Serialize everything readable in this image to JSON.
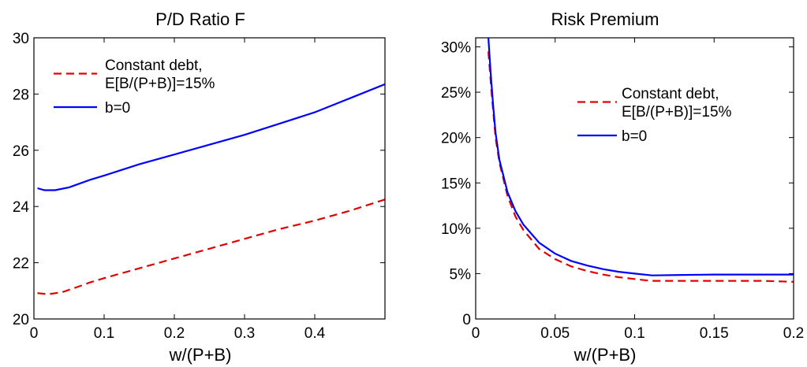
{
  "chart_data": [
    {
      "type": "line",
      "title": "P/D Ratio F",
      "xlabel": "w/(P+B)",
      "ylabel": "",
      "xlim": [
        0,
        0.5
      ],
      "ylim": [
        20,
        30
      ],
      "xticks": [
        0,
        0.1,
        0.2,
        0.3,
        0.4
      ],
      "xtick_labels": [
        "0",
        "0.1",
        "0.2",
        "0.3",
        "0.4"
      ],
      "yticks": [
        20,
        22,
        24,
        26,
        28,
        30
      ],
      "ytick_labels": [
        "20",
        "22",
        "24",
        "26",
        "28",
        "30"
      ],
      "legend_position": "top-left",
      "series": [
        {
          "name_lines": [
            "Constant debt,",
            "E[B/(P+B)]=15%"
          ],
          "color": "#e00000",
          "style": "dashed",
          "x": [
            0.005,
            0.02,
            0.04,
            0.06,
            0.08,
            0.1,
            0.15,
            0.2,
            0.25,
            0.3,
            0.35,
            0.4,
            0.45,
            0.5
          ],
          "y": [
            20.92,
            20.88,
            20.95,
            21.12,
            21.3,
            21.45,
            21.8,
            22.15,
            22.5,
            22.85,
            23.2,
            23.5,
            23.85,
            24.25
          ]
        },
        {
          "name_lines": [
            "b=0"
          ],
          "color": "#0000ff",
          "style": "solid",
          "x": [
            0.005,
            0.015,
            0.03,
            0.05,
            0.08,
            0.1,
            0.15,
            0.2,
            0.25,
            0.3,
            0.35,
            0.4,
            0.45,
            0.5
          ],
          "y": [
            24.65,
            24.58,
            24.58,
            24.68,
            24.95,
            25.1,
            25.5,
            25.85,
            26.2,
            26.55,
            26.95,
            27.35,
            27.85,
            28.35
          ]
        }
      ]
    },
    {
      "type": "line",
      "title": "Risk Premium",
      "xlabel": "w/(P+B)",
      "ylabel": "",
      "xlim": [
        0,
        0.2
      ],
      "ylim": [
        0,
        31
      ],
      "xticks": [
        0,
        0.05,
        0.1,
        0.15,
        0.2
      ],
      "xtick_labels": [
        "0",
        "0.05",
        "0.1",
        "0.15",
        "0.2"
      ],
      "yticks": [
        0,
        5,
        10,
        15,
        20,
        25,
        30
      ],
      "ytick_labels": [
        "0",
        "5%",
        "10%",
        "15%",
        "20%",
        "25%",
        "30%"
      ],
      "legend_position": "top-right",
      "series": [
        {
          "name_lines": [
            "Constant debt,",
            "E[B/(P+B)]=15%"
          ],
          "color": "#e00000",
          "style": "dashed",
          "x": [
            0.008,
            0.01,
            0.0125,
            0.015,
            0.02,
            0.025,
            0.03,
            0.04,
            0.05,
            0.06,
            0.07,
            0.08,
            0.09,
            0.1,
            0.11,
            0.12,
            0.15,
            0.18,
            0.2
          ],
          "y": [
            29.5,
            25,
            20,
            17.2,
            13.6,
            11.3,
            9.8,
            7.7,
            6.6,
            5.8,
            5.3,
            4.9,
            4.6,
            4.4,
            4.2,
            4.2,
            4.2,
            4.2,
            4.1
          ]
        },
        {
          "name_lines": [
            "b=0"
          ],
          "color": "#0000ff",
          "style": "solid",
          "x": [
            0.008,
            0.0095,
            0.011,
            0.0125,
            0.015,
            0.02,
            0.025,
            0.03,
            0.04,
            0.05,
            0.06,
            0.07,
            0.08,
            0.09,
            0.1,
            0.111,
            0.13,
            0.15,
            0.18,
            0.2
          ],
          "y": [
            31,
            27,
            23.5,
            20.5,
            17.5,
            14,
            11.9,
            10.4,
            8.4,
            7.2,
            6.4,
            5.9,
            5.5,
            5.2,
            5.0,
            4.8,
            4.85,
            4.9,
            4.9,
            4.9
          ]
        }
      ]
    }
  ]
}
